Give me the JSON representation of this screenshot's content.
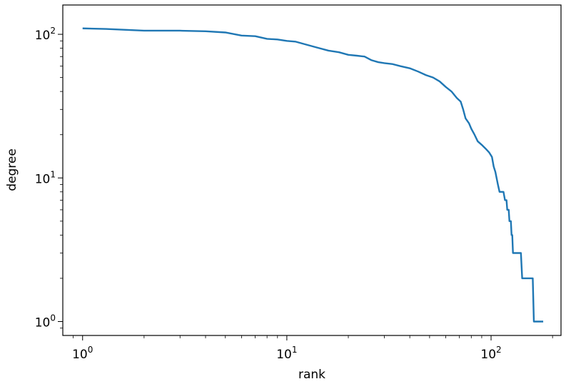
{
  "chart_data": {
    "type": "line",
    "title": "",
    "xlabel": "rank",
    "ylabel": "degree",
    "xscale": "log",
    "yscale": "log",
    "xlim": [
      0.8,
      220
    ],
    "ylim": [
      0.8,
      160
    ],
    "grid": false,
    "line_color": "#1f77b4",
    "x_ticks": [
      {
        "base": "10",
        "exp": "0",
        "value": 1
      },
      {
        "base": "10",
        "exp": "1",
        "value": 10
      },
      {
        "base": "10",
        "exp": "2",
        "value": 100
      }
    ],
    "y_ticks": [
      {
        "base": "10",
        "exp": "0",
        "value": 1
      },
      {
        "base": "10",
        "exp": "1",
        "value": 10
      },
      {
        "base": "10",
        "exp": "2",
        "value": 100
      }
    ],
    "series": [
      {
        "points": [
          [
            1,
            110
          ],
          [
            1.3,
            109
          ],
          [
            2,
            106
          ],
          [
            3,
            106
          ],
          [
            4,
            105
          ],
          [
            5,
            103
          ],
          [
            6,
            98
          ],
          [
            7,
            97
          ],
          [
            8,
            93
          ],
          [
            9,
            92
          ],
          [
            10,
            90
          ],
          [
            11,
            89
          ],
          [
            12,
            86
          ],
          [
            14,
            81
          ],
          [
            16,
            77
          ],
          [
            18,
            75
          ],
          [
            20,
            72
          ],
          [
            22,
            71
          ],
          [
            24,
            70
          ],
          [
            26,
            66
          ],
          [
            28,
            64
          ],
          [
            30,
            63
          ],
          [
            33,
            62
          ],
          [
            36,
            60
          ],
          [
            40,
            58
          ],
          [
            44,
            55
          ],
          [
            48,
            52
          ],
          [
            52,
            50
          ],
          [
            56,
            47
          ],
          [
            60,
            43
          ],
          [
            64,
            40
          ],
          [
            68,
            36
          ],
          [
            71,
            34
          ],
          [
            73,
            30
          ],
          [
            75,
            26
          ],
          [
            78,
            24
          ],
          [
            80,
            22
          ],
          [
            83,
            20
          ],
          [
            86,
            18
          ],
          [
            90,
            17
          ],
          [
            94,
            16
          ],
          [
            98,
            15
          ],
          [
            101,
            14
          ],
          [
            103,
            12
          ],
          [
            105,
            11
          ],
          [
            108,
            9
          ],
          [
            110,
            8
          ],
          [
            115,
            8
          ],
          [
            117,
            7
          ],
          [
            119,
            7
          ],
          [
            120,
            6
          ],
          [
            122,
            6
          ],
          [
            123,
            5
          ],
          [
            125,
            5
          ],
          [
            126,
            4
          ],
          [
            127,
            4
          ],
          [
            128,
            3
          ],
          [
            130,
            3
          ],
          [
            140,
            3
          ],
          [
            142,
            2
          ],
          [
            150,
            2
          ],
          [
            160,
            2
          ],
          [
            162,
            1
          ],
          [
            170,
            1
          ],
          [
            180,
            1
          ]
        ]
      }
    ]
  }
}
